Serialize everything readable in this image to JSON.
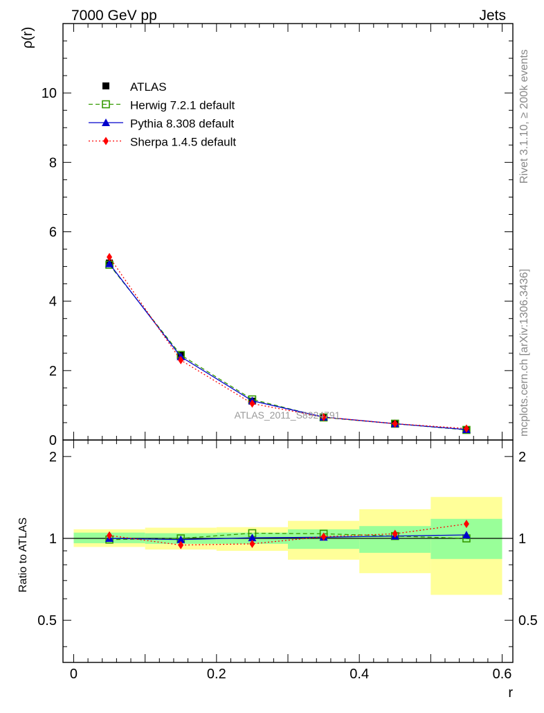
{
  "header": {
    "left": "7000 GeV pp",
    "right": "Jets"
  },
  "side_labels": {
    "rivet": "Rivet 3.1.10, ≥ 200k events",
    "mcplots": "mcplots.cern.ch [arXiv:1306.3436]"
  },
  "watermark": "ATLAS_2011_S8924791",
  "chart_data": {
    "type": "line",
    "x": [
      0.05,
      0.15,
      0.25,
      0.35,
      0.45,
      0.55
    ],
    "xlabel": "r",
    "xlim": [
      -0.015,
      0.615
    ],
    "xticks": [
      "0",
      "0.2",
      "0.4",
      "0.6"
    ],
    "xtick_values": [
      0,
      0.2,
      0.4,
      0.6
    ],
    "main": {
      "ylabel": "ρ(r)",
      "ylim": [
        0,
        12
      ],
      "yticks": [
        "0",
        "2",
        "4",
        "6",
        "8",
        "10"
      ],
      "ytick_values": [
        0,
        2,
        4,
        6,
        8,
        10
      ]
    },
    "ratio": {
      "ylabel": "Ratio to ATLAS",
      "ylim": [
        0.35,
        2.3
      ],
      "scale": "log",
      "yticks": [
        "0.5",
        "1",
        "2"
      ],
      "ytick_values": [
        0.5,
        1,
        2
      ],
      "bands": [
        {
          "xlo": 0.0,
          "xhi": 0.1,
          "green": [
            0.96,
            1.05
          ],
          "yellow": [
            0.93,
            1.08
          ]
        },
        {
          "xlo": 0.1,
          "xhi": 0.2,
          "green": [
            0.955,
            1.045
          ],
          "yellow": [
            0.91,
            1.095
          ]
        },
        {
          "xlo": 0.2,
          "xhi": 0.3,
          "green": [
            0.955,
            1.05
          ],
          "yellow": [
            0.9,
            1.1
          ]
        },
        {
          "xlo": 0.3,
          "xhi": 0.4,
          "green": [
            0.915,
            1.08
          ],
          "yellow": [
            0.835,
            1.16
          ]
        },
        {
          "xlo": 0.4,
          "xhi": 0.5,
          "green": [
            0.885,
            1.11
          ],
          "yellow": [
            0.745,
            1.28
          ]
        },
        {
          "xlo": 0.5,
          "xhi": 0.6,
          "green": [
            0.84,
            1.18
          ],
          "yellow": [
            0.62,
            1.42
          ]
        }
      ]
    },
    "series": [
      {
        "name": "ATLAS",
        "style": "data",
        "color": "#000000",
        "marker": "square-filled",
        "values": [
          5.1,
          2.45,
          1.12,
          0.64,
          0.46,
          0.29
        ],
        "ratio": [
          1.0,
          1.0,
          1.0,
          1.0,
          1.0,
          1.0
        ]
      },
      {
        "name": "Herwig 7.2.1 default",
        "style": "dashed",
        "color": "#339900",
        "marker": "square-open",
        "values": [
          5.05,
          2.45,
          1.17,
          0.65,
          0.47,
          0.29
        ],
        "ratio": [
          0.99,
          1.0,
          1.045,
          1.04,
          1.02,
          1.0
        ]
      },
      {
        "name": "Pythia 8.308 default",
        "style": "solid",
        "color": "#0000cc",
        "marker": "triangle",
        "values": [
          5.08,
          2.4,
          1.13,
          0.66,
          0.47,
          0.3
        ],
        "ratio": [
          1.0,
          0.99,
          1.005,
          1.01,
          1.02,
          1.03
        ]
      },
      {
        "name": "Sherpa 1.4.5 default",
        "style": "dotted",
        "color": "#ff0000",
        "marker": "diamond",
        "values": [
          5.27,
          2.3,
          1.05,
          0.66,
          0.47,
          0.33
        ],
        "ratio": [
          1.025,
          0.945,
          0.955,
          1.015,
          1.04,
          1.13
        ]
      }
    ],
    "colors": {
      "band_inner": "#99ff99",
      "band_outer": "#ffff99"
    }
  }
}
